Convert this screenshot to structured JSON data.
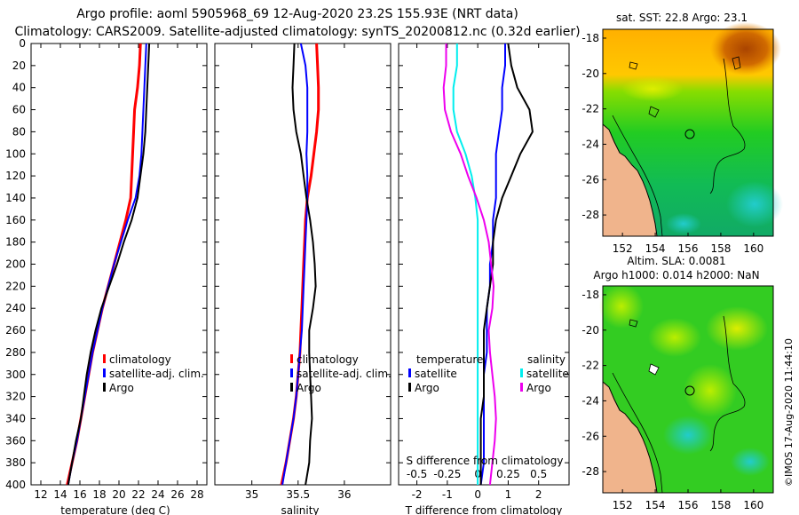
{
  "title_line1": "Argo profile: aoml 5905968_69 12-Aug-2020 23.2S 155.93E (NRT data)",
  "title_line2": "Climatology: CARS2009. Satellite-adjusted climatology: synTS_20200812.nc (0.32d earlier)",
  "timestamp": "©IMOS 17-Aug-2020 11:44:10",
  "colors": {
    "climatology": "#ff0000",
    "satellite": "#0000ff",
    "argo": "#000000",
    "sat_diff": "#00eeee",
    "sal_diff": "#ee00ee"
  },
  "legend": {
    "climatology": "climatology",
    "satellite_adj": "satellite-adj. clim.",
    "argo": "Argo",
    "temperature": "temperature",
    "salinity": "salinity",
    "satellite": "satellite"
  },
  "maps": {
    "sst_title": "sat. SST: 22.8 Argo: 23.1",
    "sla_title": "Altim. SLA: 0.0081",
    "h_title": "Argo h1000: 0.014 h2000: NaN",
    "lon_ticks": [
      "152",
      "154",
      "156",
      "158",
      "160"
    ],
    "lat_ticks": [
      "-18",
      "-20",
      "-22",
      "-24",
      "-26",
      "-28"
    ],
    "lon_range": [
      150.8,
      161.2
    ],
    "lat_range": [
      -17.5,
      -29.2
    ],
    "argo_location": {
      "lon": 155.93,
      "lat": -23.2
    }
  },
  "chart_data": [
    {
      "type": "line",
      "title": "",
      "xlabel": "temperature (deg C)",
      "ylabel": "",
      "xlim": [
        11,
        29
      ],
      "ylim": [
        400,
        0
      ],
      "xticks": [
        12,
        14,
        16,
        18,
        20,
        22,
        24,
        26,
        28
      ],
      "yticks": [
        0,
        20,
        40,
        60,
        80,
        100,
        120,
        140,
        160,
        180,
        200,
        220,
        240,
        260,
        280,
        300,
        320,
        340,
        360,
        380,
        400
      ],
      "series": [
        {
          "name": "climatology",
          "color": "#ff0000",
          "x": [
            22.2,
            22.1,
            21.9,
            21.6,
            21.5,
            21.4,
            21.3,
            21.2,
            20.7,
            20.1,
            19.5,
            18.9,
            18.3,
            17.8,
            17.3,
            16.9,
            16.5,
            16.1,
            15.7,
            15.2,
            14.7
          ],
          "y": [
            0,
            20,
            40,
            60,
            80,
            100,
            120,
            140,
            160,
            180,
            200,
            220,
            240,
            260,
            280,
            300,
            320,
            340,
            360,
            380,
            400
          ]
        },
        {
          "name": "satellite-adj. clim.",
          "color": "#0000ff",
          "x": [
            22.8,
            22.7,
            22.6,
            22.5,
            22.4,
            22.3,
            22.1,
            21.7,
            20.9,
            20.2,
            19.5,
            18.9,
            18.3,
            17.8,
            17.3,
            16.9,
            16.5,
            16.1,
            15.7,
            15.2,
            14.8
          ],
          "y": [
            0,
            20,
            40,
            60,
            80,
            100,
            120,
            140,
            160,
            180,
            200,
            220,
            240,
            260,
            280,
            300,
            320,
            340,
            360,
            380,
            400
          ]
        },
        {
          "name": "Argo",
          "color": "#000000",
          "x": [
            23.1,
            23.0,
            22.9,
            22.8,
            22.7,
            22.5,
            22.2,
            21.9,
            21.3,
            20.5,
            19.8,
            19.0,
            18.2,
            17.6,
            17.1,
            16.7,
            16.4,
            16.1,
            15.6,
            15.2,
            14.8
          ],
          "y": [
            0,
            20,
            40,
            60,
            80,
            100,
            120,
            140,
            160,
            180,
            200,
            220,
            240,
            260,
            280,
            300,
            320,
            340,
            360,
            380,
            400
          ]
        }
      ]
    },
    {
      "type": "line",
      "title": "",
      "xlabel": "salinity",
      "ylabel": "",
      "xlim": [
        34.6,
        36.5
      ],
      "ylim": [
        400,
        0
      ],
      "xticks": [
        35,
        35.5,
        36
      ],
      "series": [
        {
          "name": "climatology",
          "color": "#ff0000",
          "x": [
            35.7,
            35.71,
            35.72,
            35.72,
            35.7,
            35.67,
            35.64,
            35.6,
            35.58,
            35.57,
            35.56,
            35.55,
            35.54,
            35.53,
            35.52,
            35.5,
            35.48,
            35.45,
            35.41,
            35.37,
            35.32
          ],
          "y": [
            0,
            20,
            40,
            60,
            80,
            100,
            120,
            140,
            160,
            180,
            200,
            220,
            240,
            260,
            280,
            300,
            320,
            340,
            360,
            380,
            400
          ]
        },
        {
          "name": "satellite-adj. clim.",
          "color": "#0000ff",
          "x": [
            35.53,
            35.58,
            35.6,
            35.6,
            35.6,
            35.59,
            35.6,
            35.6,
            35.59,
            35.58,
            35.57,
            35.56,
            35.55,
            35.54,
            35.52,
            35.5,
            35.48,
            35.45,
            35.41,
            35.37,
            35.33
          ],
          "y": [
            0,
            20,
            40,
            60,
            80,
            100,
            120,
            140,
            160,
            180,
            200,
            220,
            240,
            260,
            280,
            300,
            320,
            340,
            360,
            380,
            400
          ]
        },
        {
          "name": "Argo",
          "color": "#000000",
          "x": [
            35.46,
            35.45,
            35.44,
            35.45,
            35.48,
            35.53,
            35.56,
            35.59,
            35.63,
            35.66,
            35.68,
            35.69,
            35.66,
            35.62,
            35.62,
            35.63,
            35.64,
            35.65,
            35.63,
            35.62,
            35.58
          ],
          "y": [
            0,
            20,
            40,
            60,
            80,
            100,
            120,
            140,
            160,
            180,
            200,
            220,
            240,
            260,
            280,
            300,
            320,
            340,
            360,
            380,
            400
          ]
        }
      ]
    },
    {
      "type": "line",
      "title": "",
      "xlabel": "T difference from climatology",
      "x2label": "S difference from climatology",
      "ylabel": "",
      "xlim": [
        -2.6,
        3.0
      ],
      "x2lim": [
        -0.65,
        0.75
      ],
      "ylim": [
        400,
        0
      ],
      "xticks": [
        "-2",
        "-1",
        "0",
        "1",
        "2"
      ],
      "x2ticks": [
        "-0.5",
        "-0.25",
        "0",
        "0.25",
        "0.5"
      ],
      "series": [
        {
          "name": "temperature satellite",
          "color": "#0000ff",
          "x": [
            0.9,
            0.9,
            0.8,
            0.8,
            0.7,
            0.6,
            0.6,
            0.6,
            0.5,
            0.5,
            0.4,
            0.4,
            0.3,
            0.3,
            0.3,
            0.2,
            0.2,
            0.2,
            0.2,
            0.2,
            0.1
          ],
          "y": [
            0,
            20,
            40,
            60,
            80,
            100,
            120,
            140,
            160,
            180,
            200,
            220,
            240,
            260,
            280,
            300,
            320,
            340,
            360,
            380,
            400
          ]
        },
        {
          "name": "temperature Argo",
          "color": "#000000",
          "x": [
            1.0,
            1.1,
            1.3,
            1.7,
            1.8,
            1.4,
            1.1,
            0.8,
            0.6,
            0.5,
            0.5,
            0.4,
            0.3,
            0.2,
            0.2,
            0.2,
            0.2,
            0.1,
            0.1,
            0.1,
            0.1
          ],
          "y": [
            0,
            20,
            40,
            60,
            80,
            100,
            120,
            140,
            160,
            180,
            200,
            220,
            240,
            260,
            280,
            300,
            320,
            340,
            360,
            380,
            400
          ]
        },
        {
          "name": "salinity satellite",
          "color": "#00eeee",
          "x": [
            -0.17,
            -0.17,
            -0.2,
            -0.2,
            -0.17,
            -0.1,
            -0.05,
            -0.02,
            0.0,
            0.0,
            0.0,
            0.0,
            0.0,
            0.0,
            0.0,
            0.0,
            0.0,
            0.0,
            0.0,
            0.0,
            0.0
          ],
          "y": [
            0,
            20,
            40,
            60,
            80,
            100,
            120,
            140,
            160,
            180,
            200,
            220,
            240,
            260,
            280,
            300,
            320,
            340,
            360,
            380,
            400
          ]
        },
        {
          "name": "salinity Argo",
          "color": "#ee00ee",
          "x": [
            -0.26,
            -0.26,
            -0.28,
            -0.27,
            -0.22,
            -0.14,
            -0.08,
            -0.01,
            0.05,
            0.09,
            0.11,
            0.13,
            0.12,
            0.09,
            0.1,
            0.12,
            0.14,
            0.15,
            0.14,
            0.12,
            0.1
          ],
          "y": [
            0,
            20,
            40,
            60,
            80,
            100,
            120,
            140,
            160,
            180,
            200,
            220,
            240,
            260,
            280,
            300,
            320,
            340,
            360,
            380,
            400
          ]
        }
      ]
    }
  ]
}
